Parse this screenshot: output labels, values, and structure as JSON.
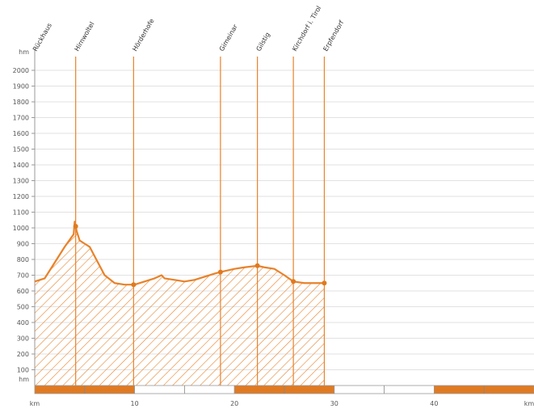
{
  "chart_data": {
    "type": "area",
    "title": "",
    "xlabel": "",
    "ylabel": "",
    "xlim": [
      0,
      50
    ],
    "ylim": [
      0,
      2100
    ],
    "x_unit": "km",
    "y_unit": "hm",
    "y_ticks": [
      100,
      200,
      300,
      400,
      500,
      600,
      700,
      800,
      900,
      1000,
      1100,
      1200,
      1300,
      1400,
      1500,
      1600,
      1700,
      1800,
      1900,
      2000
    ],
    "x_ticks": [
      10,
      20,
      30,
      40
    ],
    "grid": true,
    "series": [
      {
        "x": [
          0,
          1,
          2,
          3,
          3.9,
          4.0,
          4.2,
          4.5,
          5,
          5.5,
          6,
          7,
          8,
          9,
          10,
          11,
          12,
          12.7,
          13,
          14,
          15,
          16,
          17,
          18,
          18.6,
          20,
          21,
          22.3,
          23,
          24,
          25,
          25.9,
          27,
          28,
          29
        ],
        "y": [
          660,
          680,
          780,
          880,
          960,
          1040,
          980,
          920,
          900,
          880,
          820,
          700,
          650,
          640,
          640,
          660,
          680,
          700,
          680,
          670,
          660,
          670,
          690,
          710,
          720,
          740,
          750,
          760,
          750,
          740,
          700,
          660,
          650,
          650,
          650
        ]
      }
    ],
    "waypoints": [
      {
        "name": "Rückhaus",
        "x": 0
      },
      {
        "name": "Hirnwoltel",
        "x": 4.1
      },
      {
        "name": "Hörderhofe",
        "x": 9.9
      },
      {
        "name": "Gimeinar",
        "x": 18.6
      },
      {
        "name": "Gilstig",
        "x": 22.3
      },
      {
        "name": "Kirchdorf i. Tirol",
        "x": 25.9
      },
      {
        "name": "Erpfendorf",
        "x": 29
      }
    ],
    "axis_corner_labels": {
      "y_top": "hm",
      "y_bottom": "hm",
      "x_start": "km",
      "x_end": "km"
    },
    "colors": {
      "line": "#e8822a",
      "marker": "#e07a1f",
      "hatch": "#e8822a",
      "grid": "#e2e2e2",
      "bar_orange": "#e07a22",
      "bar_white": "#ffffff"
    }
  }
}
